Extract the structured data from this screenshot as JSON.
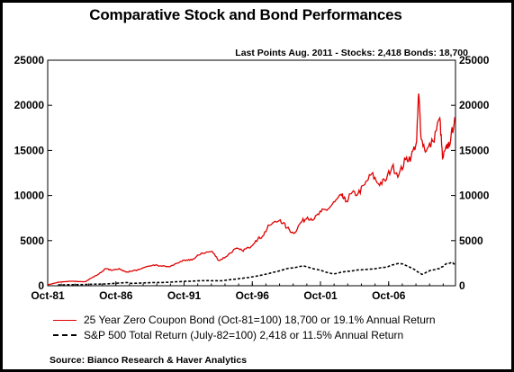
{
  "chart_data": {
    "type": "line",
    "title": "Comparative Stock and Bond Performances",
    "subtitle": "Last Points Aug. 2011 - Stocks: 2,418 Bonds: 18,700",
    "source": "Source: Bianco Research & Haver Analytics",
    "xlim": [
      1981.75,
      2011.65
    ],
    "ylim": [
      0,
      25000
    ],
    "y_ticks": [
      0,
      5000,
      10000,
      15000,
      20000,
      25000
    ],
    "y_tick_labels": [
      "0",
      "5000",
      "10000",
      "15000",
      "20000",
      "25000"
    ],
    "x_ticks": [
      1981.75,
      1986.75,
      1991.75,
      1996.75,
      2001.75,
      2006.75
    ],
    "x_tick_labels": [
      "Oct-81",
      "Oct-86",
      "Oct-91",
      "Oct-96",
      "Oct-01",
      "Oct-06"
    ],
    "grid": false,
    "series": [
      {
        "name": "25 Year Zero Coupon Bond (Oct-81=100) 18,700 or 19.1% Annual Return",
        "color": "#e00000",
        "style": "solid",
        "x": [
          1981.75,
          1982.5,
          1983.5,
          1984.5,
          1985.0,
          1985.5,
          1986.0,
          1986.5,
          1987.0,
          1987.5,
          1987.8,
          1988.5,
          1989.5,
          1990.0,
          1990.7,
          1991.5,
          1992.0,
          1992.5,
          1993.0,
          1993.8,
          1994.3,
          1994.8,
          1995.5,
          1996.0,
          1996.5,
          1997.0,
          1997.5,
          1998.0,
          1998.8,
          1999.3,
          1999.8,
          2000.3,
          2000.8,
          2001.3,
          2001.8,
          2002.3,
          2002.8,
          2003.3,
          2003.6,
          2004.0,
          2004.5,
          2005.0,
          2005.5,
          2006.0,
          2006.5,
          2007.0,
          2007.5,
          2008.0,
          2008.4,
          2008.8,
          2008.95,
          2009.15,
          2009.5,
          2010.0,
          2010.5,
          2010.7,
          2011.0,
          2011.3,
          2011.6
        ],
        "y": [
          100,
          380,
          500,
          450,
          900,
          1300,
          1900,
          1700,
          1900,
          1500,
          1600,
          1800,
          2300,
          2200,
          2100,
          2700,
          2800,
          3000,
          3600,
          3800,
          2800,
          3200,
          4100,
          3900,
          4200,
          5000,
          5500,
          6700,
          7300,
          6400,
          5800,
          7000,
          7600,
          7400,
          8200,
          8500,
          9300,
          10000,
          9300,
          10200,
          10200,
          11200,
          12400,
          11300,
          11600,
          13200,
          12300,
          14000,
          14300,
          16000,
          21300,
          16200,
          14900,
          16000,
          18600,
          14100,
          15200,
          16200,
          18700
        ]
      },
      {
        "name": "S&P 500 Total Return (July-82=100) 2,418 or 11.5% Annual Return",
        "color": "#000000",
        "style": "dashed",
        "x": [
          1982.5,
          1984.0,
          1986.0,
          1987.6,
          1987.9,
          1989.0,
          1990.5,
          1991.5,
          1993.0,
          1994.5,
          1995.5,
          1996.5,
          1997.5,
          1998.5,
          1999.5,
          2000.5,
          2001.5,
          2002.7,
          2003.5,
          2004.5,
          2005.5,
          2006.5,
          2007.4,
          2007.8,
          2008.5,
          2009.2,
          2009.8,
          2010.5,
          2011.0,
          2011.3,
          2011.6
        ],
        "y": [
          100,
          130,
          200,
          360,
          260,
          330,
          380,
          460,
          560,
          550,
          730,
          920,
          1200,
          1550,
          1950,
          2200,
          1800,
          1300,
          1550,
          1750,
          1850,
          2050,
          2450,
          2400,
          1900,
          1250,
          1700,
          1900,
          2450,
          2550,
          2418
        ]
      }
    ]
  }
}
